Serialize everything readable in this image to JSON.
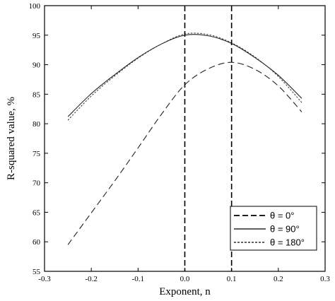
{
  "chart_data": {
    "type": "line",
    "title": "",
    "xlabel": "Exponent, n",
    "ylabel": "R-squared value, %",
    "xlim": [
      -0.3,
      0.3
    ],
    "ylim": [
      55,
      100
    ],
    "xticks": [
      -0.3,
      -0.2,
      -0.1,
      0,
      0.1,
      0.2,
      0.3
    ],
    "xtick_labels": [
      "-0.3",
      "-0.2",
      "-0.1",
      "0.0",
      "0.1",
      "0.2",
      "0.3"
    ],
    "yticks": [
      55,
      60,
      65,
      70,
      75,
      80,
      85,
      90,
      95,
      100
    ],
    "ytick_labels": [
      "55",
      "60",
      "65",
      "70",
      "75",
      "80",
      "85",
      "90",
      "95",
      "100"
    ],
    "grid": false,
    "legend_position": "bottom-right",
    "vertical_lines": [
      0.0,
      0.1
    ],
    "series": [
      {
        "name": "θ = 0°",
        "style": "long-dash",
        "x": [
          -0.25,
          -0.2,
          -0.15,
          -0.1,
          -0.05,
          0.0,
          0.05,
          0.1,
          0.15,
          0.2,
          0.25
        ],
        "y": [
          59.5,
          64.9,
          70.3,
          75.9,
          81.6,
          86.6,
          89.3,
          90.4,
          89.2,
          86.4,
          82.0
        ]
      },
      {
        "name": "θ = 90°",
        "style": "solid",
        "x": [
          -0.25,
          -0.2,
          -0.15,
          -0.1,
          -0.05,
          0.0,
          0.05,
          0.1,
          0.15,
          0.2,
          0.25
        ],
        "y": [
          81.2,
          85.1,
          88.3,
          91.2,
          93.5,
          95.0,
          94.9,
          93.6,
          91.2,
          88.2,
          84.3
        ]
      },
      {
        "name": "θ = 180°",
        "style": "dotted",
        "x": [
          -0.25,
          -0.2,
          -0.15,
          -0.1,
          -0.05,
          0.0,
          0.05,
          0.1,
          0.15,
          0.2,
          0.25
        ],
        "y": [
          80.6,
          84.7,
          88.1,
          91.1,
          93.5,
          95.2,
          95.1,
          93.7,
          91.3,
          88.0,
          83.6
        ]
      }
    ]
  }
}
